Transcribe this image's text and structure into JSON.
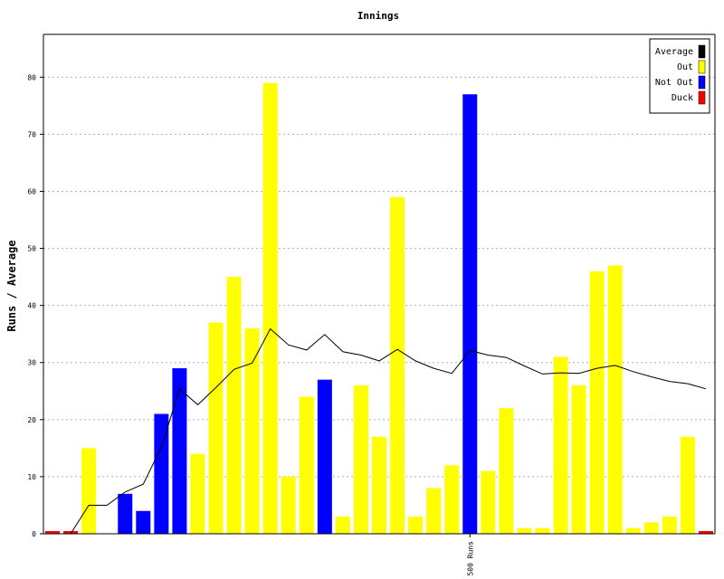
{
  "chart_data": {
    "type": "bar",
    "title": "Innings",
    "xlabel": "",
    "ylabel": "Runs / Average",
    "ylim": [
      0,
      87.5
    ],
    "yticks": [
      0,
      10,
      20,
      30,
      40,
      50,
      60,
      70,
      80
    ],
    "grid": true,
    "legend_position": "top-right",
    "x_annotations": [
      {
        "innings": 24,
        "label": "500 Runs"
      }
    ],
    "legend": [
      {
        "key": "average",
        "label": "Average",
        "color": "#000000"
      },
      {
        "key": "out",
        "label": "Out",
        "color": "#ffff00"
      },
      {
        "key": "notout",
        "label": "Not Out",
        "color": "#0000ff"
      },
      {
        "key": "duck",
        "label": "Duck",
        "color": "#ff0000"
      }
    ],
    "innings": [
      {
        "runs": 0,
        "status": "duck"
      },
      {
        "runs": 0,
        "status": "duck"
      },
      {
        "runs": 15,
        "status": "out"
      },
      {
        "runs": 0,
        "status": "none"
      },
      {
        "runs": 7,
        "status": "notout"
      },
      {
        "runs": 4,
        "status": "notout"
      },
      {
        "runs": 21,
        "status": "notout"
      },
      {
        "runs": 29,
        "status": "notout"
      },
      {
        "runs": 14,
        "status": "out"
      },
      {
        "runs": 37,
        "status": "out"
      },
      {
        "runs": 45,
        "status": "out"
      },
      {
        "runs": 36,
        "status": "out"
      },
      {
        "runs": 79,
        "status": "out"
      },
      {
        "runs": 10,
        "status": "out"
      },
      {
        "runs": 24,
        "status": "out"
      },
      {
        "runs": 27,
        "status": "notout"
      },
      {
        "runs": 3,
        "status": "out"
      },
      {
        "runs": 26,
        "status": "out"
      },
      {
        "runs": 17,
        "status": "out"
      },
      {
        "runs": 59,
        "status": "out"
      },
      {
        "runs": 3,
        "status": "out"
      },
      {
        "runs": 8,
        "status": "out"
      },
      {
        "runs": 12,
        "status": "out"
      },
      {
        "runs": 77,
        "status": "notout"
      },
      {
        "runs": 11,
        "status": "out"
      },
      {
        "runs": 22,
        "status": "out"
      },
      {
        "runs": 1,
        "status": "out"
      },
      {
        "runs": 1,
        "status": "out"
      },
      {
        "runs": 31,
        "status": "out"
      },
      {
        "runs": 26,
        "status": "out"
      },
      {
        "runs": 46,
        "status": "out"
      },
      {
        "runs": 47,
        "status": "out"
      },
      {
        "runs": 1,
        "status": "out"
      },
      {
        "runs": 2,
        "status": "out"
      },
      {
        "runs": 3,
        "status": "out"
      },
      {
        "runs": 17,
        "status": "out"
      },
      {
        "runs": 0,
        "status": "duck"
      }
    ],
    "average": [
      0,
      0,
      5,
      5,
      7.3,
      8.7,
      15.2,
      25.4,
      22.6,
      25.6,
      28.8,
      29.9,
      35.9,
      33.1,
      32.2,
      34.9,
      31.9,
      31.3,
      30.3,
      32.3,
      30.3,
      29.0,
      28.1,
      32.1,
      31.3,
      30.9,
      29.4,
      28.0,
      28.2,
      28.1,
      29.0,
      29.5,
      28.4,
      27.5,
      26.7,
      26.3,
      25.4
    ]
  }
}
